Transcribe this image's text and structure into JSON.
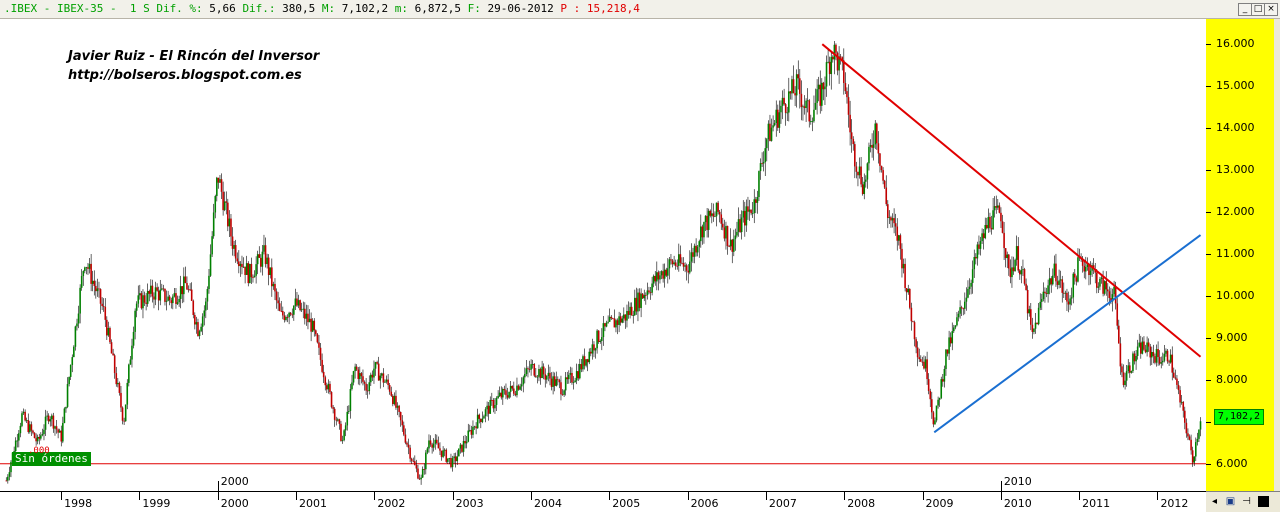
{
  "window": {
    "title_parts": [
      {
        "text": ".IBEX - IBEX-35 -  1 S Dif. %:",
        "color": "#00a000"
      },
      {
        "text": " 5,66 ",
        "color": "#000000"
      },
      {
        "text": "Dif.:",
        "color": "#00a000"
      },
      {
        "text": " 380,5 ",
        "color": "#000000"
      },
      {
        "text": "M:",
        "color": "#00a000"
      },
      {
        "text": " 7,102,2 ",
        "color": "#000000"
      },
      {
        "text": "m:",
        "color": "#00a000"
      },
      {
        "text": " 6,872,5 ",
        "color": "#000000"
      },
      {
        "text": "F:",
        "color": "#00a000"
      },
      {
        "text": " 29-06-2012 ",
        "color": "#000000"
      },
      {
        "text": "P :",
        "color": "#e00000"
      },
      {
        "text": " 15,218,4",
        "color": "#e00000"
      }
    ],
    "buttons": {
      "minimize": "_",
      "restore": "□",
      "close": "×"
    }
  },
  "watermark": {
    "line1": "Javier Ruiz - El Rincón del Inversor",
    "line2": "http://bolseros.blogspot.com.es"
  },
  "orders_label": "Sin órdenes",
  "support_label": ".000",
  "last_price_label": "7,102,2",
  "colors": {
    "background": "#ffffff",
    "axis_strip": "#ffff00",
    "up_candle": "#008000",
    "down_candle": "#c00000",
    "downtrend_line": "#e00000",
    "uptrend_line": "#1a6fd1",
    "support_line": "#e00000",
    "grid": "#ff7f7f"
  },
  "chart_data": {
    "type": "candlestick",
    "title": "",
    "xlabel": "",
    "ylabel": "",
    "y_ticks": [
      "16.000",
      "15.000",
      "14.000",
      "13.000",
      "12.000",
      "11.000",
      "10.000",
      "9.000",
      "8.000",
      "7.000",
      "6.000"
    ],
    "y_tick_values": [
      16000,
      15000,
      14000,
      13000,
      12000,
      11000,
      10000,
      9000,
      8000,
      7000,
      6000
    ],
    "ylim": [
      5350,
      16600
    ],
    "x_ticks": [
      "1998",
      "1999",
      "2000",
      "2001",
      "2002",
      "2003",
      "2004",
      "2005",
      "2006",
      "2007",
      "2008",
      "2009",
      "2010",
      "2011",
      "2012"
    ],
    "x_tick_values": [
      1998,
      1999,
      2000,
      2001,
      2002,
      2003,
      2004,
      2005,
      2006,
      2007,
      2008,
      2009,
      2010,
      2011,
      2012
    ],
    "xlim": [
      1997.22,
      2012.62
    ],
    "marker_labels": [
      {
        "text": "2000",
        "x": 2000.0
      },
      {
        "text": "2010",
        "x": 2010.0
      }
    ],
    "grid": false,
    "series_path": [
      [
        1997.3,
        5600
      ],
      [
        1997.5,
        7150
      ],
      [
        1997.7,
        6500
      ],
      [
        1997.85,
        7200
      ],
      [
        1998.0,
        6600
      ],
      [
        1998.3,
        10900
      ],
      [
        1998.55,
        9600
      ],
      [
        1998.8,
        7000
      ],
      [
        1998.95,
        9800
      ],
      [
        1999.2,
        10100
      ],
      [
        1999.4,
        9900
      ],
      [
        1999.6,
        10300
      ],
      [
        1999.75,
        9200
      ],
      [
        1999.85,
        9800
      ],
      [
        2000.0,
        12900
      ],
      [
        2000.2,
        11200
      ],
      [
        2000.4,
        10500
      ],
      [
        2000.6,
        11000
      ],
      [
        2000.8,
        9500
      ],
      [
        2001.0,
        9800
      ],
      [
        2001.2,
        9300
      ],
      [
        2001.45,
        7500
      ],
      [
        2001.6,
        6500
      ],
      [
        2001.75,
        8300
      ],
      [
        2001.9,
        7800
      ],
      [
        2002.0,
        8300
      ],
      [
        2002.2,
        7800
      ],
      [
        2002.5,
        6000
      ],
      [
        2002.6,
        5600
      ],
      [
        2002.7,
        6600
      ],
      [
        2002.85,
        6300
      ],
      [
        2003.0,
        6000
      ],
      [
        2003.3,
        7000
      ],
      [
        2003.6,
        7600
      ],
      [
        2003.8,
        7800
      ],
      [
        2004.0,
        8300
      ],
      [
        2004.2,
        8100
      ],
      [
        2004.4,
        7800
      ],
      [
        2004.6,
        8200
      ],
      [
        2004.85,
        9000
      ],
      [
        2005.0,
        9300
      ],
      [
        2005.2,
        9500
      ],
      [
        2005.5,
        10200
      ],
      [
        2005.8,
        10800
      ],
      [
        2006.0,
        10700
      ],
      [
        2006.2,
        11700
      ],
      [
        2006.4,
        12000
      ],
      [
        2006.55,
        11200
      ],
      [
        2006.7,
        11800
      ],
      [
        2006.85,
        12200
      ],
      [
        2007.0,
        13700
      ],
      [
        2007.2,
        14500
      ],
      [
        2007.4,
        15000
      ],
      [
        2007.55,
        14300
      ],
      [
        2007.7,
        14800
      ],
      [
        2007.85,
        15900
      ],
      [
        2008.0,
        15200
      ],
      [
        2008.1,
        13600
      ],
      [
        2008.25,
        12600
      ],
      [
        2008.4,
        14100
      ],
      [
        2008.55,
        12000
      ],
      [
        2008.7,
        11300
      ],
      [
        2008.85,
        9600
      ],
      [
        2008.95,
        8600
      ],
      [
        2009.05,
        8300
      ],
      [
        2009.15,
        6900
      ],
      [
        2009.3,
        8600
      ],
      [
        2009.5,
        9700
      ],
      [
        2009.7,
        11000
      ],
      [
        2009.85,
        11800
      ],
      [
        2010.0,
        12000
      ],
      [
        2010.1,
        10500
      ],
      [
        2010.2,
        11000
      ],
      [
        2010.3,
        10300
      ],
      [
        2010.4,
        9000
      ],
      [
        2010.55,
        10100
      ],
      [
        2010.7,
        10600
      ],
      [
        2010.85,
        9800
      ],
      [
        2011.0,
        10800
      ],
      [
        2011.15,
        10700
      ],
      [
        2011.25,
        10300
      ],
      [
        2011.45,
        10000
      ],
      [
        2011.55,
        8000
      ],
      [
        2011.7,
        8500
      ],
      [
        2011.8,
        8800
      ],
      [
        2011.95,
        8600
      ],
      [
        2012.05,
        8500
      ],
      [
        2012.15,
        8600
      ],
      [
        2012.25,
        7800
      ],
      [
        2012.35,
        7000
      ],
      [
        2012.45,
        6100
      ],
      [
        2012.55,
        7100
      ]
    ],
    "trendlines": [
      {
        "name": "downtrend",
        "points": [
          [
            2007.72,
            16000
          ],
          [
            2012.55,
            8550
          ]
        ],
        "color": "#e00000"
      },
      {
        "name": "uptrend",
        "points": [
          [
            2009.15,
            6750
          ],
          [
            2012.55,
            11450
          ]
        ],
        "color": "#1a6fd1"
      }
    ],
    "support_level": 6000,
    "last_price": 7102.2
  }
}
